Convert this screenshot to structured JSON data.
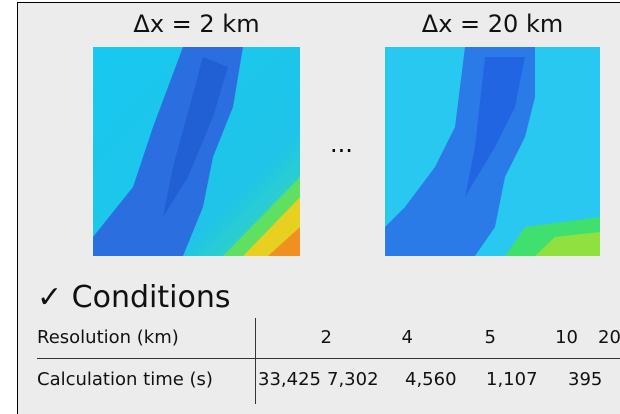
{
  "panels": [
    {
      "label": "Δx = 2 km"
    },
    {
      "label": "Δx = 20 km"
    }
  ],
  "ellipsis": "...",
  "heading": "✓ Conditions",
  "table": {
    "rows": [
      [
        "Resolution (km)",
        "2",
        "4",
        "5",
        "10",
        "20"
      ],
      [
        "Calculation time (s)",
        "33,425",
        "7,302",
        "4,560",
        "1,107",
        "395"
      ]
    ]
  }
}
